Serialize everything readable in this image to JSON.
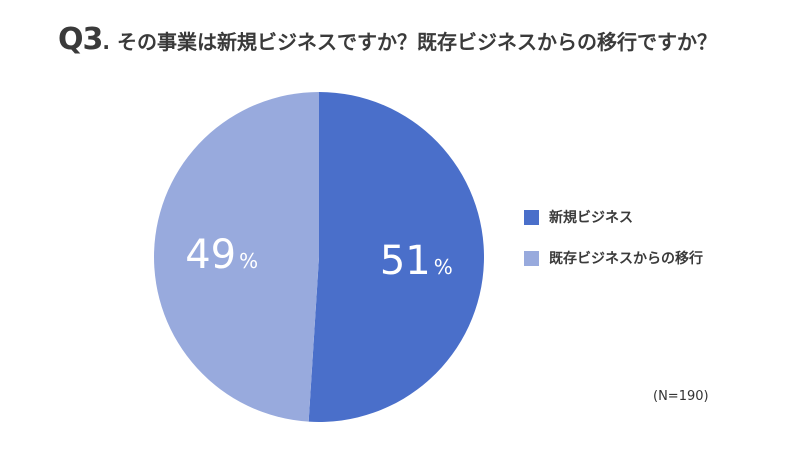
{
  "title": {
    "number": "Q3",
    "text": ". その事業は新規ビジネスですか？既存ビジネスからの移行ですか？"
  },
  "chart_data": {
    "type": "pie",
    "categories": [
      "新規ビジネス",
      "既存ビジネスからの移行"
    ],
    "values": [
      51,
      49
    ],
    "unit": "%",
    "colors": [
      "#4a6fca",
      "#98aadd"
    ],
    "legend_position": "right"
  },
  "note": "(N=190)"
}
